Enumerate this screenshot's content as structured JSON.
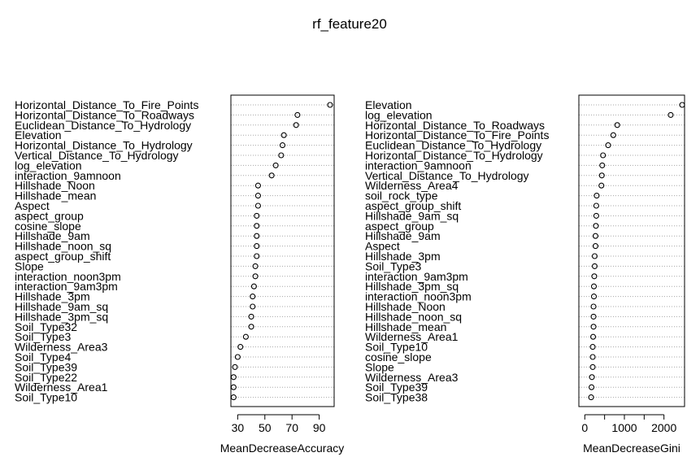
{
  "page_title": "rf_feature20",
  "chart_data": [
    {
      "type": "scatter",
      "title": "",
      "xlabel": "MeanDecreaseAccuracy",
      "ylabel": "",
      "xlim": [
        25,
        101
      ],
      "xticks": [
        30,
        50,
        70,
        90
      ],
      "xtick_labels": [
        "30",
        "50",
        "70",
        "90"
      ],
      "grid": "horizontal-dotted",
      "categories": [
        "Horizontal_Distance_To_Fire_Points",
        "Horizontal_Distance_To_Roadways",
        "Euclidean_Distance_To_Hydrology",
        "Elevation",
        "Horizontal_Distance_To_Hydrology",
        "Vertical_Distance_To_Hydrology",
        "log_elevation",
        "interaction_9amnoon",
        "Hillshade_Noon",
        "Hillshade_mean",
        "Aspect",
        "aspect_group",
        "cosine_slope",
        "Hillshade_9am",
        "Hillshade_noon_sq",
        "aspect_group_shift",
        "Slope",
        "interaction_noon3pm",
        "interaction_9am3pm",
        "Hillshade_3pm",
        "Hillshade_9am_sq",
        "Hillshade_3pm_sq",
        "Soil_Type32",
        "Soil_Type3",
        "Wilderness_Area3",
        "Soil_Type4",
        "Soil_Type39",
        "Soil_Type22",
        "Wilderness_Area1",
        "Soil_Type10"
      ],
      "values": [
        98,
        74,
        73,
        64,
        63,
        62,
        58,
        55,
        45,
        45,
        45,
        44,
        44,
        44,
        44,
        44,
        43,
        43,
        42,
        41,
        41,
        40,
        40,
        36,
        32,
        30,
        28,
        27,
        27,
        27
      ]
    },
    {
      "type": "scatter",
      "title": "",
      "xlabel": "MeanDecreaseGini",
      "ylabel": "",
      "xlim": [
        -150,
        2520
      ],
      "xticks": [
        0,
        500,
        1000,
        1500,
        2000
      ],
      "xtick_labels": [
        "0",
        "",
        "1000",
        "",
        "2000"
      ],
      "grid": "horizontal-dotted",
      "categories": [
        "Elevation",
        "log_elevation",
        "Horizontal_Distance_To_Roadways",
        "Horizontal_Distance_To_Fire_Points",
        "Euclidean_Distance_To_Hydrology",
        "Horizontal_Distance_To_Hydrology",
        "interaction_9amnoon",
        "Vertical_Distance_To_Hydrology",
        "Wilderness_Area4",
        "soil_rock_type",
        "aspect_group_shift",
        "Hillshade_9am_sq",
        "aspect_group",
        "Hillshade_9am",
        "Aspect",
        "Hillshade_3pm",
        "Soil_Type3",
        "interaction_9am3pm",
        "Hillshade_3pm_sq",
        "interaction_noon3pm",
        "Hillshade_Noon",
        "Hillshade_noon_sq",
        "Hillshade_mean",
        "Wilderness_Area1",
        "Soil_Type10",
        "cosine_slope",
        "Slope",
        "Wilderness_Area3",
        "Soil_Type39",
        "Soil_Type38"
      ],
      "values": [
        2460,
        2170,
        820,
        720,
        590,
        460,
        440,
        430,
        420,
        300,
        290,
        290,
        280,
        270,
        270,
        250,
        250,
        240,
        230,
        230,
        220,
        220,
        220,
        210,
        200,
        200,
        200,
        180,
        170,
        160
      ]
    }
  ]
}
